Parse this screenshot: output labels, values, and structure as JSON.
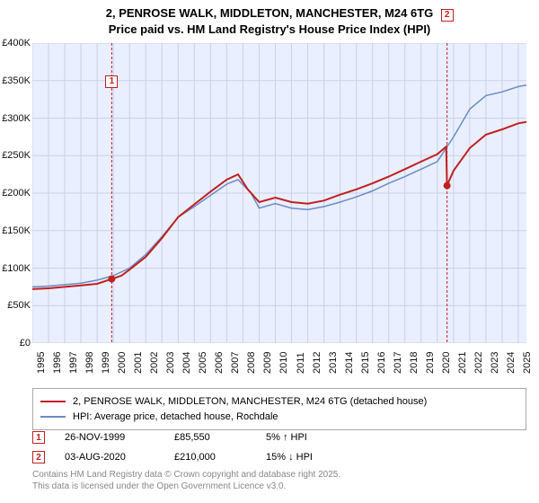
{
  "title": {
    "line1": "2, PENROSE WALK, MIDDLETON, MANCHESTER, M24 6TG",
    "line2": "Price paid vs. HM Land Registry's House Price Index (HPI)",
    "fontsize": 13
  },
  "chart": {
    "type": "line",
    "background_color": "#eaefff",
    "grid_color": "#c8d0e8",
    "x_range": [
      1995,
      2025.5
    ],
    "y_range": [
      0,
      400000
    ],
    "x_ticks": [
      1995,
      1996,
      1997,
      1998,
      1999,
      2000,
      2001,
      2002,
      2003,
      2004,
      2005,
      2006,
      2007,
      2008,
      2009,
      2010,
      2011,
      2012,
      2013,
      2014,
      2015,
      2016,
      2017,
      2018,
      2019,
      2020,
      2021,
      2022,
      2023,
      2024,
      2025
    ],
    "y_ticks": [
      0,
      50000,
      100000,
      150000,
      200000,
      250000,
      300000,
      350000,
      400000
    ],
    "y_tick_labels": [
      "£0",
      "£50K",
      "£100K",
      "£150K",
      "£200K",
      "£250K",
      "£300K",
      "£350K",
      "£400K"
    ],
    "series": [
      {
        "name": "price_paid",
        "label": "2, PENROSE WALK, MIDDLETON, MANCHESTER, M24 6TG (detached house)",
        "color": "#c02020",
        "width": 2,
        "points": [
          [
            1995,
            72000
          ],
          [
            1996,
            73000
          ],
          [
            1997,
            75000
          ],
          [
            1998,
            77000
          ],
          [
            1999,
            79000
          ],
          [
            1999.9,
            85550
          ],
          [
            2000.5,
            90000
          ],
          [
            2001,
            98000
          ],
          [
            2002,
            115000
          ],
          [
            2003,
            140000
          ],
          [
            2004,
            168000
          ],
          [
            2005,
            185000
          ],
          [
            2006,
            202000
          ],
          [
            2007,
            218000
          ],
          [
            2007.7,
            225000
          ],
          [
            2008.3,
            205000
          ],
          [
            2009,
            188000
          ],
          [
            2010,
            194000
          ],
          [
            2011,
            188000
          ],
          [
            2012,
            186000
          ],
          [
            2013,
            190000
          ],
          [
            2014,
            198000
          ],
          [
            2015,
            205000
          ],
          [
            2016,
            213000
          ],
          [
            2017,
            222000
          ],
          [
            2018,
            232000
          ],
          [
            2019,
            242000
          ],
          [
            2020,
            252000
          ],
          [
            2020.55,
            262000
          ],
          [
            2020.6,
            210000
          ],
          [
            2021,
            230000
          ],
          [
            2022,
            260000
          ],
          [
            2023,
            278000
          ],
          [
            2024,
            285000
          ],
          [
            2025,
            293000
          ],
          [
            2025.5,
            295000
          ]
        ]
      },
      {
        "name": "hpi",
        "label": "HPI: Average price, detached house, Rochdale",
        "color": "#6b8cc4",
        "width": 1.5,
        "points": [
          [
            1995,
            75000
          ],
          [
            1996,
            76000
          ],
          [
            1997,
            78000
          ],
          [
            1998,
            80000
          ],
          [
            1999,
            84000
          ],
          [
            2000,
            90000
          ],
          [
            2001,
            100000
          ],
          [
            2002,
            118000
          ],
          [
            2003,
            142000
          ],
          [
            2004,
            168000
          ],
          [
            2005,
            182000
          ],
          [
            2006,
            197000
          ],
          [
            2007,
            212000
          ],
          [
            2007.7,
            218000
          ],
          [
            2008.5,
            200000
          ],
          [
            2009,
            180000
          ],
          [
            2010,
            186000
          ],
          [
            2011,
            180000
          ],
          [
            2012,
            178000
          ],
          [
            2013,
            182000
          ],
          [
            2014,
            188000
          ],
          [
            2015,
            195000
          ],
          [
            2016,
            203000
          ],
          [
            2017,
            213000
          ],
          [
            2018,
            222000
          ],
          [
            2019,
            232000
          ],
          [
            2020,
            242000
          ],
          [
            2021,
            275000
          ],
          [
            2022,
            312000
          ],
          [
            2023,
            330000
          ],
          [
            2024,
            335000
          ],
          [
            2025,
            342000
          ],
          [
            2025.5,
            344000
          ]
        ]
      }
    ],
    "markers": [
      {
        "index": "1",
        "x": 1999.9,
        "y": 85550,
        "box_y_offset": -220
      },
      {
        "index": "2",
        "x": 2020.6,
        "y": 210000,
        "box_y_offset": -190
      }
    ]
  },
  "legend": {
    "items": [
      {
        "color": "#c02020",
        "label": "2, PENROSE WALK, MIDDLETON, MANCHESTER, M24 6TG (detached house)"
      },
      {
        "color": "#6b8cc4",
        "label": "HPI: Average price, detached house, Rochdale"
      }
    ]
  },
  "sales": [
    {
      "index": "1",
      "date": "26-NOV-1999",
      "price": "£85,550",
      "change": "5% ↑ HPI"
    },
    {
      "index": "2",
      "date": "03-AUG-2020",
      "price": "£210,000",
      "change": "15% ↓ HPI"
    }
  ],
  "attribution": {
    "line1": "Contains HM Land Registry data © Crown copyright and database right 2025.",
    "line2": "This data is licensed under the Open Government Licence v3.0."
  }
}
